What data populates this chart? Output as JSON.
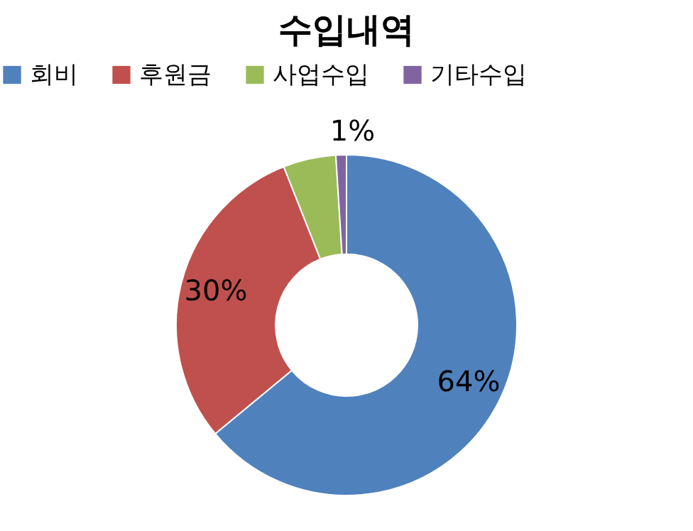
{
  "chart_data": {
    "type": "donut",
    "title": "수입내역",
    "categories": [
      "회비",
      "후원금",
      "사업수입",
      "기타수입"
    ],
    "values": [
      64,
      30,
      5,
      1
    ],
    "colors": [
      "#4f81bd",
      "#c0504d",
      "#9bbb59",
      "#8064a2"
    ],
    "value_labels": [
      "64%",
      "30%",
      null,
      "1%"
    ],
    "legend": "top"
  }
}
